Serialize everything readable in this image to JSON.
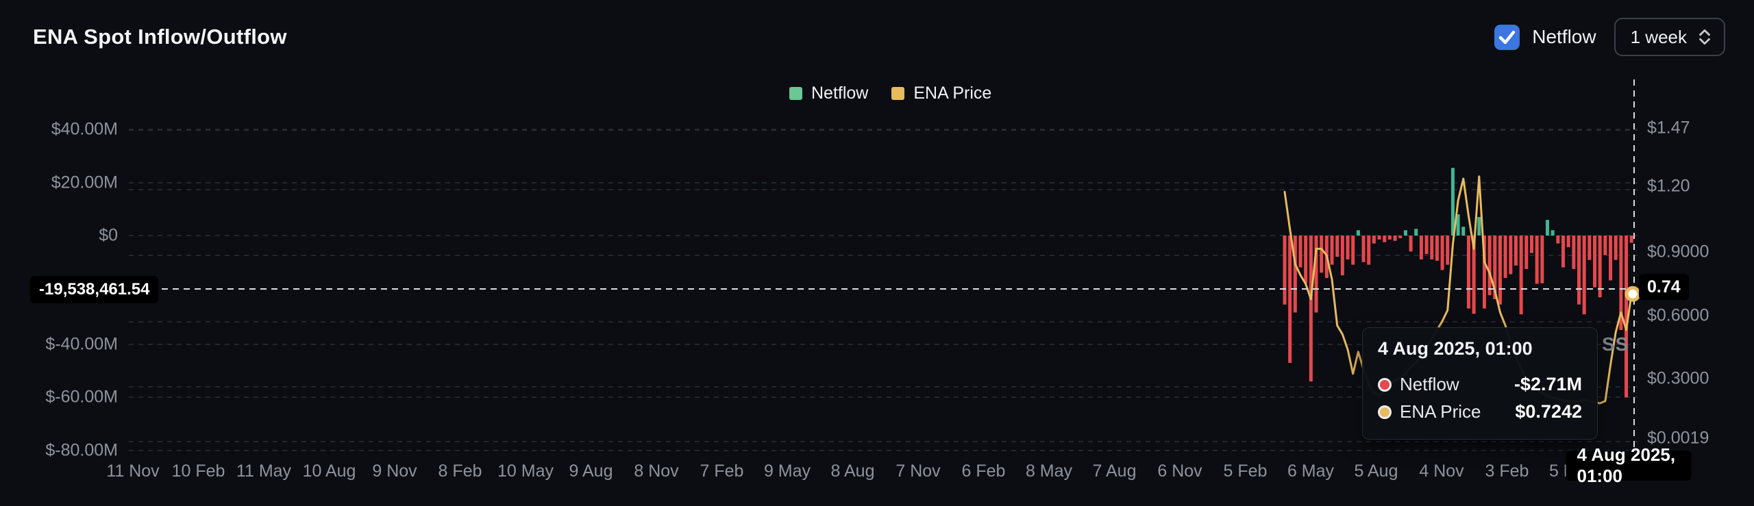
{
  "header": {
    "title": "ENA Spot Inflow/Outflow",
    "netflow_toggle": {
      "label": "Netflow",
      "checked": true
    },
    "interval_select": {
      "value": "1 week"
    }
  },
  "legend": {
    "items": [
      {
        "label": "Netflow",
        "color": "#6cc795"
      },
      {
        "label": "ENA Price",
        "color": "#e7bb5e"
      }
    ]
  },
  "watermark": "SS",
  "crosshair": {
    "left_axis_value": "-19,538,461.54",
    "right_axis_value": "0.74",
    "x_axis_value": "4 Aug 2025, 01:00"
  },
  "tooltip": {
    "title": "4 Aug 2025, 01:00",
    "rows": [
      {
        "label": "Netflow",
        "value": "-$2.71M",
        "dot_color": "#e5484d"
      },
      {
        "label": "ENA Price",
        "value": "$0.7242",
        "dot_color": "#e7bb5e"
      }
    ]
  },
  "chart_data": {
    "type": "combo",
    "title": "ENA Spot Inflow/Outflow",
    "interval": "1 week",
    "legend_position": "top-center",
    "grid": "dashed",
    "left_axis_ticks": [
      "$40.00M",
      "$20.00M",
      "$0",
      "$-40.00M",
      "$-60.00M",
      "$-80.00M"
    ],
    "right_axis_ticks": [
      "$1.47",
      "$1.20",
      "$0.9000",
      "$0.6000",
      "$0.3000",
      "$0.0019"
    ],
    "x_tick_labels": [
      "11 Nov",
      "10 Feb",
      "11 May",
      "10 Aug",
      "9 Nov",
      "8 Feb",
      "10 May",
      "9 Aug",
      "8 Nov",
      "7 Feb",
      "9 May",
      "8 Aug",
      "7 Nov",
      "6 Feb",
      "8 May",
      "7 Aug",
      "6 Nov",
      "5 Feb",
      "6 May",
      "5 Aug",
      "4 Nov",
      "3 Feb",
      "5 May"
    ],
    "left_axis_range_musd": [
      -80,
      40
    ],
    "series": [
      {
        "name": "Netflow",
        "type": "bar",
        "unit": "USD millions",
        "color_positive": "#3fb793",
        "color_negative": "#e5484d",
        "values": [
          -26,
          -48,
          -29,
          -12,
          -18,
          -55,
          -29,
          -14,
          -16,
          -11,
          -8,
          -15,
          -9,
          -11,
          2,
          -10,
          -11,
          -3,
          -1.5,
          -2.5,
          -1.5,
          -2,
          -1,
          2,
          -6,
          2.5,
          -9,
          -7,
          -9,
          -9.5,
          -13,
          -11,
          25.5,
          8,
          3.3,
          -27.5,
          -29.5,
          7,
          -27.5,
          -22.5,
          -24,
          -26,
          -16,
          -14.6,
          -11.3,
          -29.7,
          -12.6,
          -6.6,
          -18.2,
          -18,
          5.9,
          2,
          -3,
          -12,
          -4.4,
          -12.6,
          -26,
          -29.7,
          -9.2,
          -19.5,
          -23.3,
          -7.4,
          -16.9,
          -9.2,
          -35.6,
          -61,
          -2.71
        ]
      },
      {
        "name": "ENA Price",
        "type": "line",
        "unit": "USD",
        "color": "#e7bb5e",
        "values": [
          1.19,
          1.02,
          0.86,
          0.81,
          0.77,
          0.7,
          0.93,
          0.93,
          0.9,
          0.79,
          0.58,
          0.54,
          0.47,
          0.36,
          0.46,
          0.38,
          0.31,
          0.27,
          0.26,
          0.28,
          0.31,
          0.33,
          0.34,
          0.36,
          0.39,
          0.41,
          0.44,
          0.48,
          0.52,
          0.56,
          0.6,
          0.65,
          0.95,
          1.15,
          1.25,
          1.08,
          0.93,
          1.26,
          0.87,
          0.82,
          0.74,
          0.64,
          0.58,
          0.5,
          0.44,
          0.38,
          0.34,
          0.31,
          0.29,
          0.27,
          0.26,
          0.25,
          0.245,
          0.24,
          0.235,
          0.23,
          0.235,
          0.24,
          0.235,
          0.23,
          0.225,
          0.235,
          0.4,
          0.55,
          0.64,
          0.56,
          0.7242
        ]
      }
    ],
    "highlighted_point": {
      "x_label": "4 Aug 2025, 01:00",
      "netflow": "-$2.71M",
      "price": "$0.7242",
      "left_axis_crosshair": "-19,538,461.54",
      "right_axis_crosshair": "0.74"
    }
  }
}
